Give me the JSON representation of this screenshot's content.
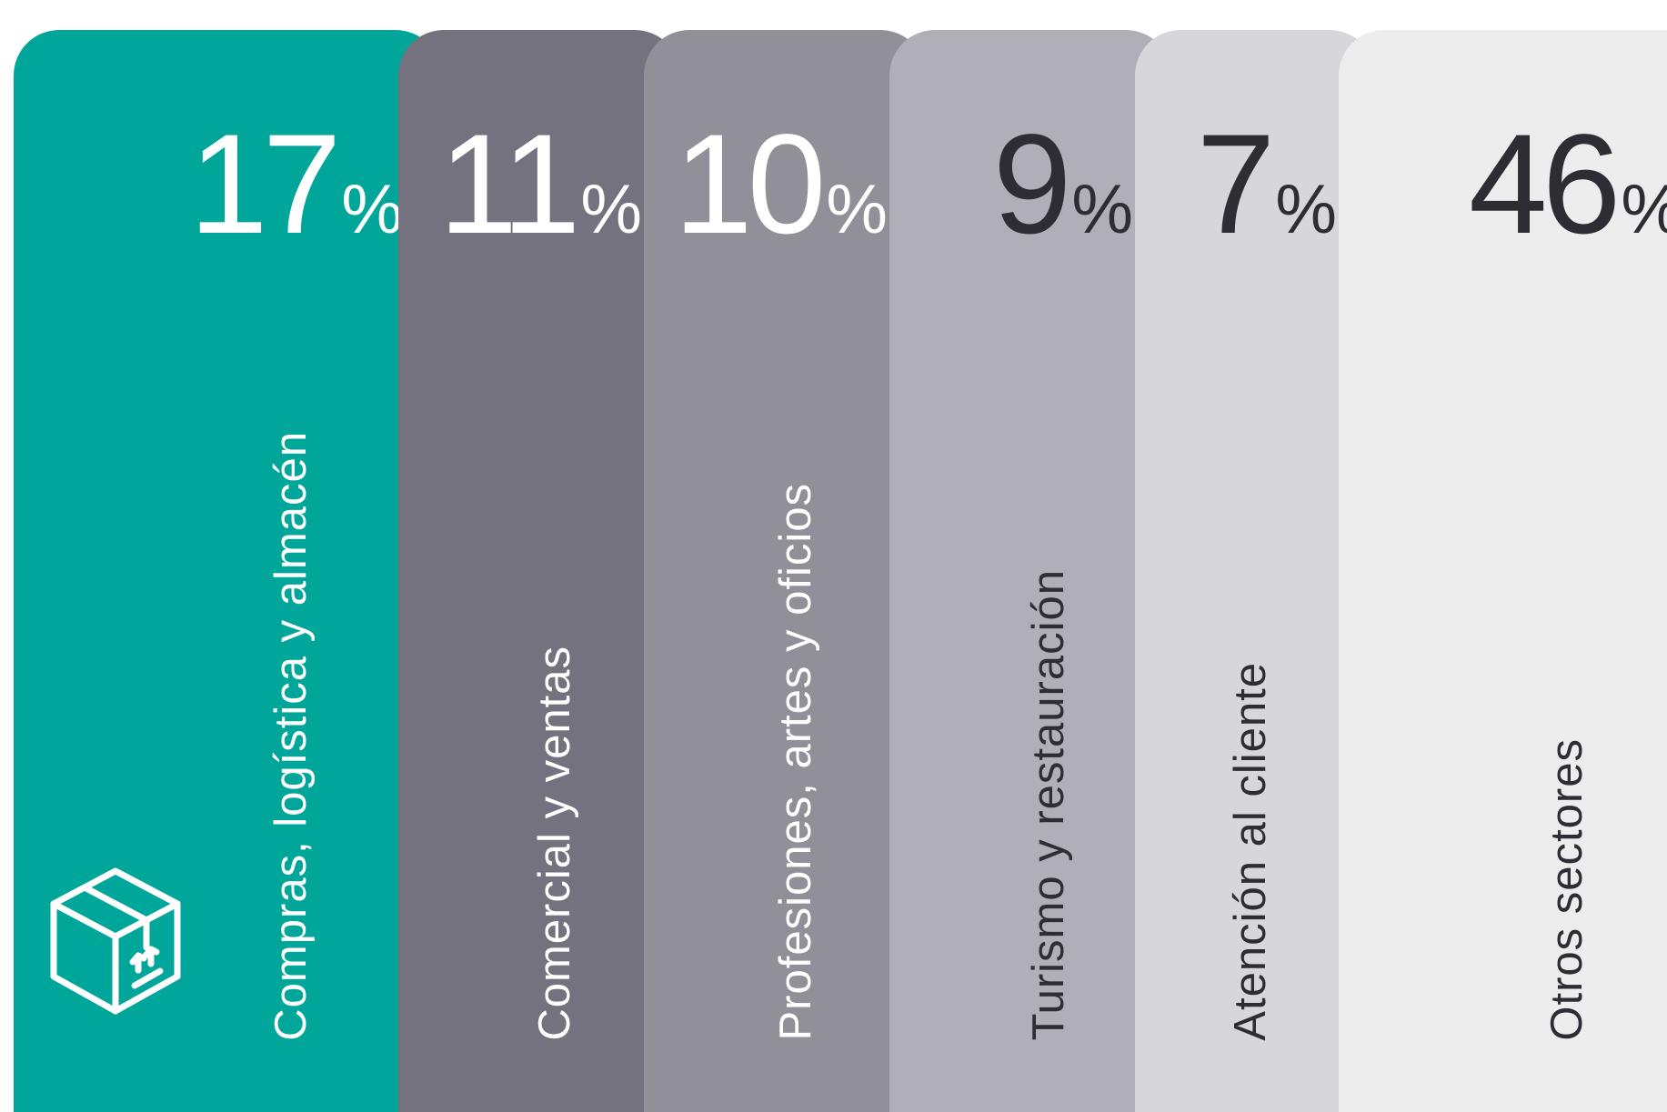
{
  "chart_data": {
    "type": "bar",
    "title": "",
    "unit": "%",
    "categories": [
      "Compras, logística y almacén",
      "Comercial y ventas",
      "Profesiones, artes y oficios",
      "Turismo y restauración",
      "Atención al cliente",
      "Otros sectores"
    ],
    "values": [
      17,
      11,
      10,
      9,
      7,
      46
    ],
    "colors": [
      "#00a699",
      "#74727f",
      "#918f98",
      "#b0afb8",
      "#d7d6db",
      "#ededed"
    ],
    "text_colors": [
      "#ffffff",
      "#ffffff",
      "#ffffff",
      "#2e2d33",
      "#2e2d33",
      "#2e2d33"
    ],
    "icons": [
      "box-icon",
      "",
      "",
      "",
      "",
      ""
    ]
  }
}
